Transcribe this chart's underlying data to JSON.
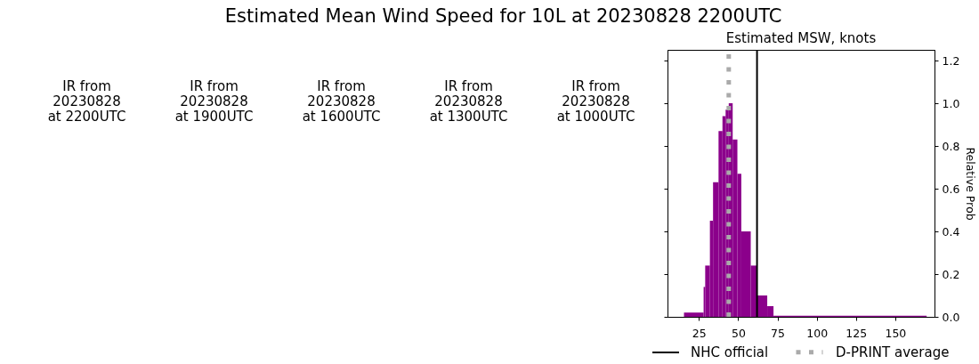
{
  "chart_data": {
    "type": "histogram",
    "title": "Estimated Mean Wind Speed for 10L at 20230828 2200UTC",
    "subtitle": "Estimated MSW, knots",
    "ylabel": "Relative Prob",
    "annotations": [
      "IR from\n20230828\nat 2200UTC",
      "IR from\n20230828\nat 1900UTC",
      "IR from\n20230828\nat 1600UTC",
      "IR from\n20230828\nat 1300UTC",
      "IR from\n20230828\nat 1000UTC"
    ],
    "bins": [
      15.5,
      28,
      29,
      32,
      34,
      37.5,
      40,
      42,
      44,
      46.5,
      49.5,
      52,
      58,
      62,
      68.5,
      72.5,
      170
    ],
    "values": [
      0.02,
      0.14,
      0.24,
      0.45,
      0.63,
      0.87,
      0.94,
      0.97,
      1.0,
      0.83,
      0.67,
      0.4,
      0.24,
      0.1,
      0.05,
      0.005
    ],
    "color": "#8b008b",
    "xlim": [
      5,
      175
    ],
    "xticks": [
      25,
      50,
      75,
      100,
      125,
      150
    ],
    "ylim": [
      0,
      1.25
    ],
    "yticks": [
      {
        "value": 0,
        "label": "0.0"
      },
      0.2,
      0.4,
      0.6,
      0.8,
      {
        "value": 1,
        "label": "1.0"
      },
      1.2
    ],
    "ref_lines": [
      {
        "axis": "x",
        "value": 62,
        "label": "NHC official",
        "color": "#000000",
        "line_style": "solid"
      },
      {
        "axis": "x",
        "value": 44,
        "label": "D-PRINT average",
        "color": "#aaaaaa",
        "line_style": "dotted"
      }
    ],
    "legend": "bottom"
  }
}
